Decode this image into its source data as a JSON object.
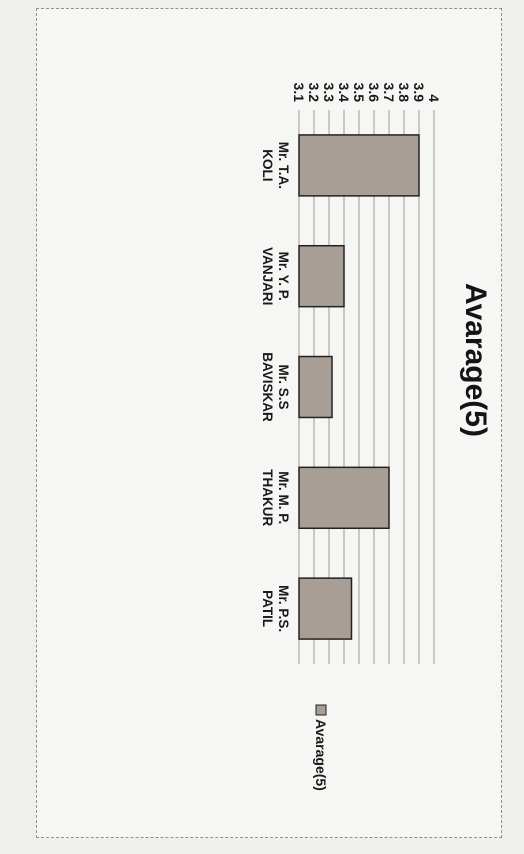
{
  "chart_data": {
    "type": "bar",
    "title": "Avarage(5)",
    "categories": [
      [
        "Mr. T.A.",
        "KOLI"
      ],
      [
        "Mr. Y. P.",
        "VANJARI"
      ],
      [
        "Mr. S.S",
        "BAVISKAR"
      ],
      [
        "Mr. M. P.",
        "THAKUR"
      ],
      [
        "Mr. P.S.",
        "PATIL"
      ]
    ],
    "series": [
      {
        "name": "Avarage(5)",
        "values": [
          3.9,
          3.4,
          3.32,
          3.7,
          3.45
        ]
      }
    ],
    "ylim": [
      3.1,
      4.0
    ],
    "yticks": [
      "4",
      "3.9",
      "3.8",
      "3.7",
      "3.6",
      "3.5",
      "3.4",
      "3.3",
      "3.2",
      "3.1"
    ],
    "grid": true,
    "legend_position": "right",
    "bar_color": "#a89e96"
  }
}
